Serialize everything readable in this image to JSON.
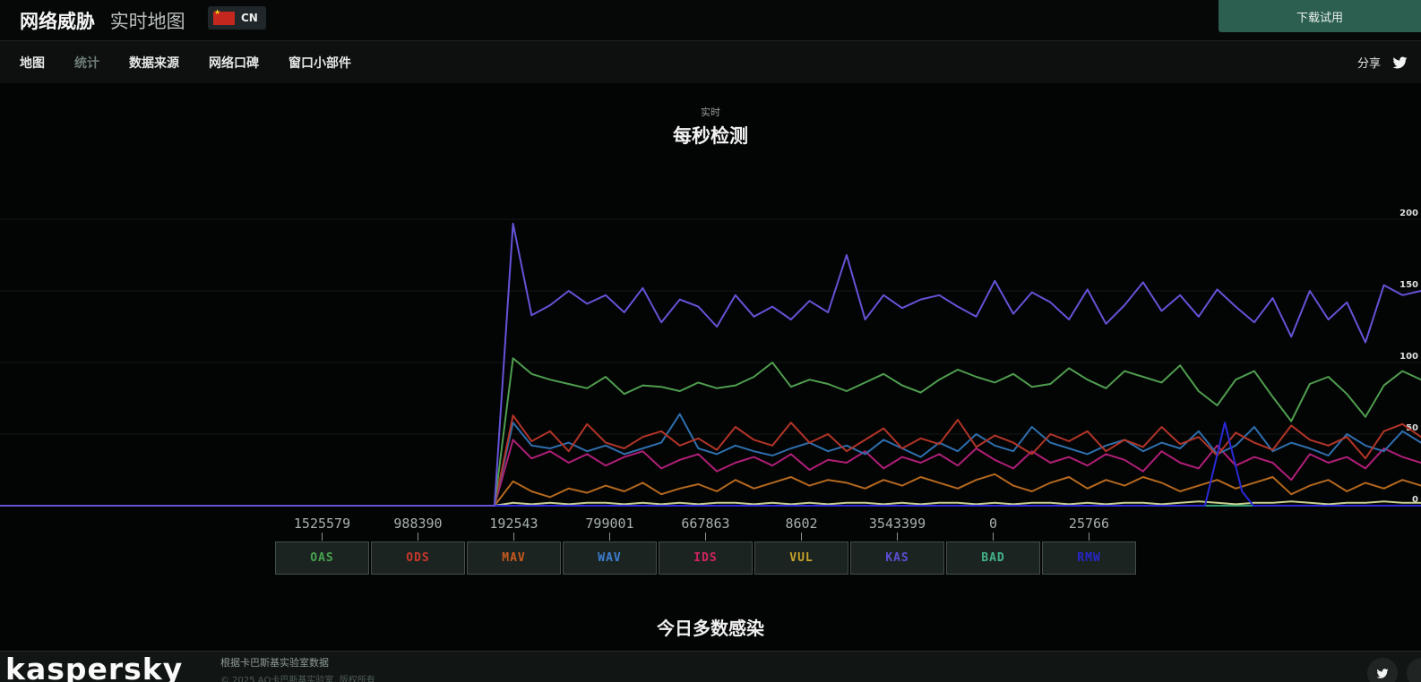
{
  "header": {
    "brand_bold": "网络威胁",
    "brand_light": "实时地图",
    "country_code": "CN",
    "download_button": "下载试用"
  },
  "nav": {
    "tabs": [
      {
        "label": "地图",
        "active": false
      },
      {
        "label": "统计",
        "active": true
      },
      {
        "label": "数据来源",
        "active": false
      },
      {
        "label": "网络口碑",
        "active": false
      },
      {
        "label": "窗口小部件",
        "active": false
      }
    ],
    "share_label": "分享"
  },
  "chart": {
    "subtitle": "实时",
    "title": "每秒检测"
  },
  "chart_data": {
    "type": "line",
    "title": "每秒检测",
    "subtitle": "实时",
    "xlabel": "",
    "ylabel": "",
    "y_ticks": [
      0,
      50,
      100,
      150,
      200
    ],
    "ylim": [
      0,
      250
    ],
    "grid": "horizontal-faint",
    "legend_position": "bottom",
    "x_unit": "percent-of-width",
    "x_start": 34.8,
    "x_step": 1.304,
    "series": [
      {
        "name": "BAD",
        "color": "#2e9e74",
        "points": [
          [
            0,
            0
          ],
          [
            100,
            0
          ]
        ]
      },
      {
        "name": "VUL",
        "color": "#c9cf8e",
        "values": [
          0,
          2,
          1,
          2,
          1,
          2,
          2,
          1,
          2,
          1,
          2,
          1,
          2,
          2,
          1,
          2,
          1,
          2,
          1,
          2,
          2,
          1,
          2,
          1,
          2,
          2,
          1,
          2,
          1,
          2,
          2,
          1,
          2,
          1,
          2,
          2,
          1,
          2,
          3,
          2,
          1,
          2,
          2,
          3,
          2,
          1,
          2,
          2,
          3,
          2,
          2
        ]
      },
      {
        "name": "MAV",
        "color": "#b5691f",
        "values": [
          0,
          17,
          10,
          6,
          12,
          9,
          14,
          10,
          16,
          8,
          12,
          15,
          10,
          18,
          12,
          16,
          20,
          14,
          18,
          16,
          12,
          18,
          14,
          20,
          16,
          12,
          18,
          22,
          14,
          10,
          16,
          20,
          12,
          18,
          14,
          20,
          16,
          10,
          14,
          18,
          12,
          16,
          20,
          8,
          14,
          18,
          10,
          16,
          12,
          18,
          14
        ]
      },
      {
        "name": "IDS",
        "color": "#b01f78",
        "values": [
          0,
          46,
          33,
          38,
          30,
          36,
          28,
          34,
          38,
          26,
          32,
          36,
          24,
          30,
          34,
          28,
          36,
          25,
          32,
          30,
          38,
          26,
          34,
          30,
          36,
          28,
          40,
          32,
          26,
          38,
          30,
          34,
          28,
          36,
          32,
          24,
          38,
          30,
          26,
          42,
          28,
          34,
          30,
          18,
          36,
          30,
          34,
          26,
          40,
          34,
          30
        ]
      },
      {
        "name": "WAV",
        "color": "#2f6fae",
        "values": [
          0,
          58,
          42,
          40,
          44,
          38,
          42,
          36,
          40,
          44,
          64,
          40,
          36,
          42,
          38,
          35,
          40,
          44,
          38,
          42,
          36,
          46,
          40,
          34,
          44,
          38,
          50,
          42,
          38,
          55,
          44,
          40,
          36,
          42,
          46,
          38,
          44,
          40,
          52,
          36,
          42,
          55,
          38,
          44,
          40,
          35,
          50,
          42,
          38,
          52,
          44
        ]
      },
      {
        "name": "ODS",
        "color": "#b23528",
        "values": [
          0,
          63,
          45,
          52,
          38,
          57,
          44,
          40,
          48,
          52,
          42,
          47,
          39,
          55,
          46,
          42,
          58,
          44,
          50,
          38,
          46,
          54,
          40,
          47,
          43,
          60,
          41,
          49,
          44,
          36,
          50,
          45,
          52,
          38,
          46,
          41,
          55,
          43,
          48,
          35,
          51,
          44,
          39,
          56,
          46,
          42,
          48,
          33,
          52,
          57,
          48
        ]
      },
      {
        "name": "OAS",
        "color": "#4f9e4f",
        "values": [
          0,
          103,
          92,
          88,
          85,
          82,
          90,
          78,
          84,
          83,
          80,
          86,
          82,
          84,
          90,
          100,
          83,
          88,
          85,
          80,
          86,
          92,
          84,
          79,
          88,
          95,
          90,
          86,
          92,
          83,
          85,
          96,
          88,
          82,
          94,
          90,
          86,
          98,
          80,
          70,
          88,
          94,
          76,
          59,
          85,
          90,
          78,
          62,
          84,
          94,
          88
        ]
      },
      {
        "name": "RMW",
        "color": "#2a2ad8",
        "points": [
          [
            0,
            0
          ],
          [
            84.8,
            0
          ],
          [
            86.2,
            58
          ],
          [
            87.4,
            10
          ],
          [
            88.2,
            0
          ],
          [
            100,
            0
          ]
        ]
      },
      {
        "name": "KAS",
        "color": "#6354d8",
        "values": [
          0,
          197,
          133,
          140,
          150,
          141,
          147,
          135,
          152,
          128,
          144,
          139,
          125,
          147,
          132,
          139,
          130,
          143,
          135,
          175,
          130,
          147,
          138,
          144,
          147,
          139,
          132,
          157,
          134,
          149,
          142,
          130,
          151,
          127,
          140,
          156,
          136,
          147,
          132,
          151,
          139,
          128,
          145,
          118,
          150,
          130,
          142,
          114,
          154,
          147,
          150
        ]
      }
    ]
  },
  "legend": {
    "items": [
      {
        "code": "OAS",
        "value": "1525579",
        "color": "#46a44e"
      },
      {
        "code": "ODS",
        "value": "988390",
        "color": "#c6382b"
      },
      {
        "code": "MAV",
        "value": "192543",
        "color": "#c75a1e"
      },
      {
        "code": "WAV",
        "value": "799001",
        "color": "#3c7fd2"
      },
      {
        "code": "IDS",
        "value": "667863",
        "color": "#cf2360"
      },
      {
        "code": "VUL",
        "value": "8602",
        "color": "#c7a42a"
      },
      {
        "code": "KAS",
        "value": "3543399",
        "color": "#5b4fd4"
      },
      {
        "code": "BAD",
        "value": "0",
        "color": "#44b389"
      },
      {
        "code": "RMW",
        "value": "25766",
        "color": "#2727c9"
      }
    ]
  },
  "section": {
    "title": "今日多数感染"
  },
  "footer": {
    "logo": "kaspersky",
    "attribution_line1": "根据卡巴斯基实验室数据",
    "attribution_line2": "© 2025 AO卡巴斯基实验室. 版权所有"
  }
}
